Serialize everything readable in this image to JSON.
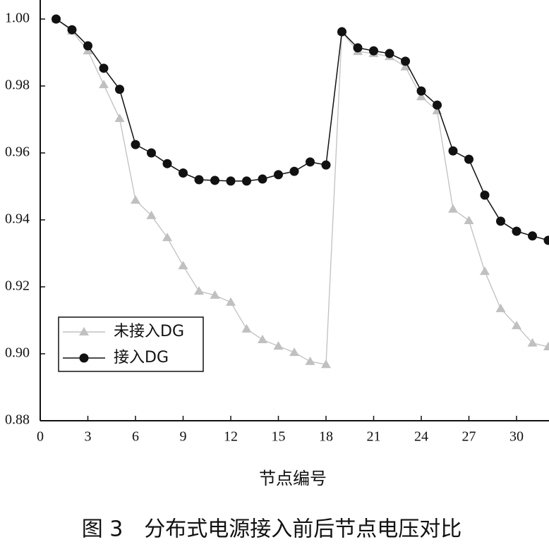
{
  "chart_data": {
    "type": "line",
    "xlabel": "节点编号",
    "caption": "图 3　分布式电源接入前后节点电压对比",
    "x": [
      1,
      2,
      3,
      4,
      5,
      6,
      7,
      8,
      9,
      10,
      11,
      12,
      13,
      14,
      15,
      16,
      17,
      18,
      19,
      20,
      21,
      22,
      23,
      24,
      25,
      26,
      27,
      28,
      29,
      30,
      31,
      32
    ],
    "series": [
      {
        "name": "未接入DG",
        "color": "#c0c0c0",
        "marker": "triangle",
        "values": [
          1.0,
          0.9964,
          0.9905,
          0.9804,
          0.9703,
          0.9459,
          0.9413,
          0.9347,
          0.9263,
          0.9187,
          0.9175,
          0.9154,
          0.9074,
          0.9042,
          0.9023,
          0.9004,
          0.8977,
          0.8968,
          0.9962,
          0.9903,
          0.9897,
          0.9888,
          0.9857,
          0.9768,
          0.9726,
          0.9432,
          0.9398,
          0.9246,
          0.9135,
          0.9084,
          0.9032,
          0.9021
        ]
      },
      {
        "name": "接入DG",
        "color": "#111111",
        "marker": "circle",
        "values": [
          1.0,
          0.9968,
          0.992,
          0.9853,
          0.979,
          0.9625,
          0.96,
          0.9568,
          0.954,
          0.952,
          0.9518,
          0.9516,
          0.9516,
          0.9522,
          0.9535,
          0.9545,
          0.9573,
          0.9564,
          0.9962,
          0.9914,
          0.9905,
          0.9897,
          0.9874,
          0.9785,
          0.9743,
          0.9606,
          0.9581,
          0.9474,
          0.9396,
          0.9366,
          0.9352,
          0.9339
        ]
      }
    ],
    "xlim": [
      0,
      32
    ],
    "xticks": [
      0,
      3,
      6,
      9,
      12,
      15,
      18,
      21,
      24,
      27,
      30
    ],
    "ylim": [
      0.88,
      1.0
    ],
    "yticks": [
      {
        "value": 0.88,
        "label": "0.88"
      },
      {
        "value": 0.9,
        "label": "0.90"
      },
      {
        "value": 0.92,
        "label": "0.92"
      },
      {
        "value": 0.94,
        "label": "0.94"
      },
      {
        "value": 0.96,
        "label": "0.96"
      },
      {
        "value": 0.98,
        "label": "0.98"
      },
      {
        "value": 1.0,
        "label": "1.00"
      }
    ],
    "legend": "lower left"
  }
}
